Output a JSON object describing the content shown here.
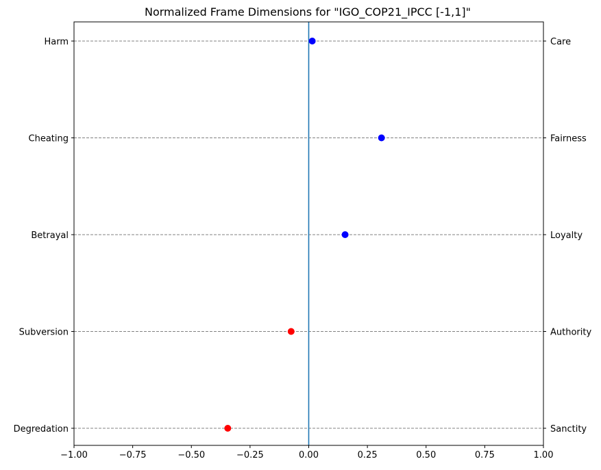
{
  "chart_data": {
    "type": "scatter",
    "title": "Normalized Frame Dimensions for \"IGO_COP21_IPCC [-1,1]\"",
    "xlim": [
      -1,
      1
    ],
    "x_ticks": [
      "−1.00",
      "−0.75",
      "−0.50",
      "−0.25",
      "0.00",
      "0.25",
      "0.50",
      "0.75",
      "1.00"
    ],
    "x_tick_values": [
      -1,
      -0.75,
      -0.5,
      -0.25,
      0,
      0.25,
      0.5,
      0.75,
      1
    ],
    "left_labels": [
      "Harm",
      "Cheating",
      "Betrayal",
      "Subversion",
      "Degredation"
    ],
    "right_labels": [
      "Care",
      "Fairness",
      "Loyalty",
      "Authority",
      "Sanctity"
    ],
    "values": [
      0.015,
      0.31,
      0.155,
      -0.075,
      -0.345
    ],
    "colors": {
      "positive": "#0000ff",
      "negative": "#ff0000",
      "zero_line": "#1f77b4",
      "grid": "#808080"
    },
    "reference_line_x": 0,
    "grid": "horizontal dashed"
  }
}
